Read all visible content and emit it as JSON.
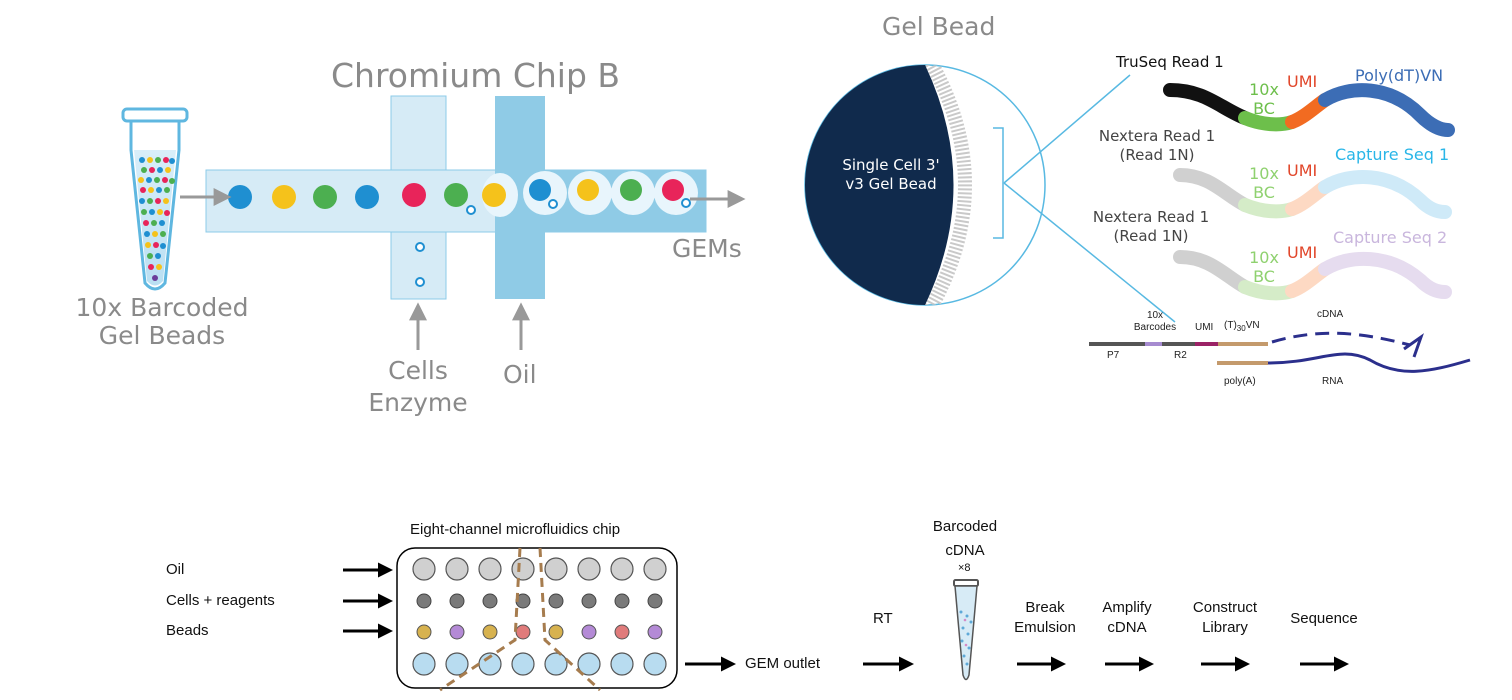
{
  "chip_panel": {
    "chip_title": "Chromium Chip B",
    "beads_label_1": "10x Barcoded",
    "beads_label_2": "Gel Beads",
    "cells_label_1": "Cells",
    "cells_label_2": "Enzyme",
    "oil_label": "Oil",
    "gems_label": "GEMs"
  },
  "bead_panel": {
    "gel_bead_title": "Gel Bead",
    "bead_name_1": "Single Cell 3'",
    "bead_name_2": "v3 Gel Bead",
    "strand1": {
      "read": "TruSeq Read 1",
      "bc_1": "10x",
      "bc_2": "BC",
      "umi": "UMI",
      "capture": "Poly(dT)VN"
    },
    "strand2": {
      "read_1": "Nextera Read 1",
      "read_2": "(Read 1N)",
      "bc_1": "10x",
      "bc_2": "BC",
      "umi": "UMI",
      "capture": "Capture Seq 1"
    },
    "strand3": {
      "read_1": "Nextera Read 1",
      "read_2": "(Read 1N)",
      "bc_1": "10x",
      "bc_2": "BC",
      "umi": "UMI",
      "capture": "Capture Seq 2"
    }
  },
  "construct": {
    "barcodes_1": "10x",
    "barcodes_2": "Barcodes",
    "umi": "UMI",
    "t30": "(T)",
    "t30_sub": "30",
    "t30_vn": "VN",
    "cdna": "cDNA",
    "p7": "P7",
    "r2": "R2",
    "polya": "poly(A)",
    "rna": "RNA"
  },
  "workflow": {
    "chip_title": "Eight-channel microfluidics chip",
    "inputs": [
      "Oil",
      "Cells + reagents",
      "Beads"
    ],
    "gem_outlet": "GEM outlet",
    "rt": "RT",
    "barcoded_1": "Barcoded",
    "barcoded_2": "cDNA",
    "times8": "×8",
    "steps": [
      {
        "line1": "Break",
        "line2": "Emulsion"
      },
      {
        "line1": "Amplify",
        "line2": "cDNA"
      },
      {
        "line1": "Construct",
        "line2": "Library"
      },
      {
        "line1": "Sequence",
        "line2": ""
      }
    ]
  },
  "colors": {
    "channel_light": "#cfe7f3",
    "channel_dark": "#8ccbe8",
    "bead_navy": "#102a4c",
    "bc_green": "#6dbf4b",
    "umi_orange": "#f26b21",
    "polydt_blue": "#3c6db5",
    "capture1": "#29b6e8",
    "capture2": "#c9b6dd",
    "gem_brown": "#a67c4e"
  }
}
